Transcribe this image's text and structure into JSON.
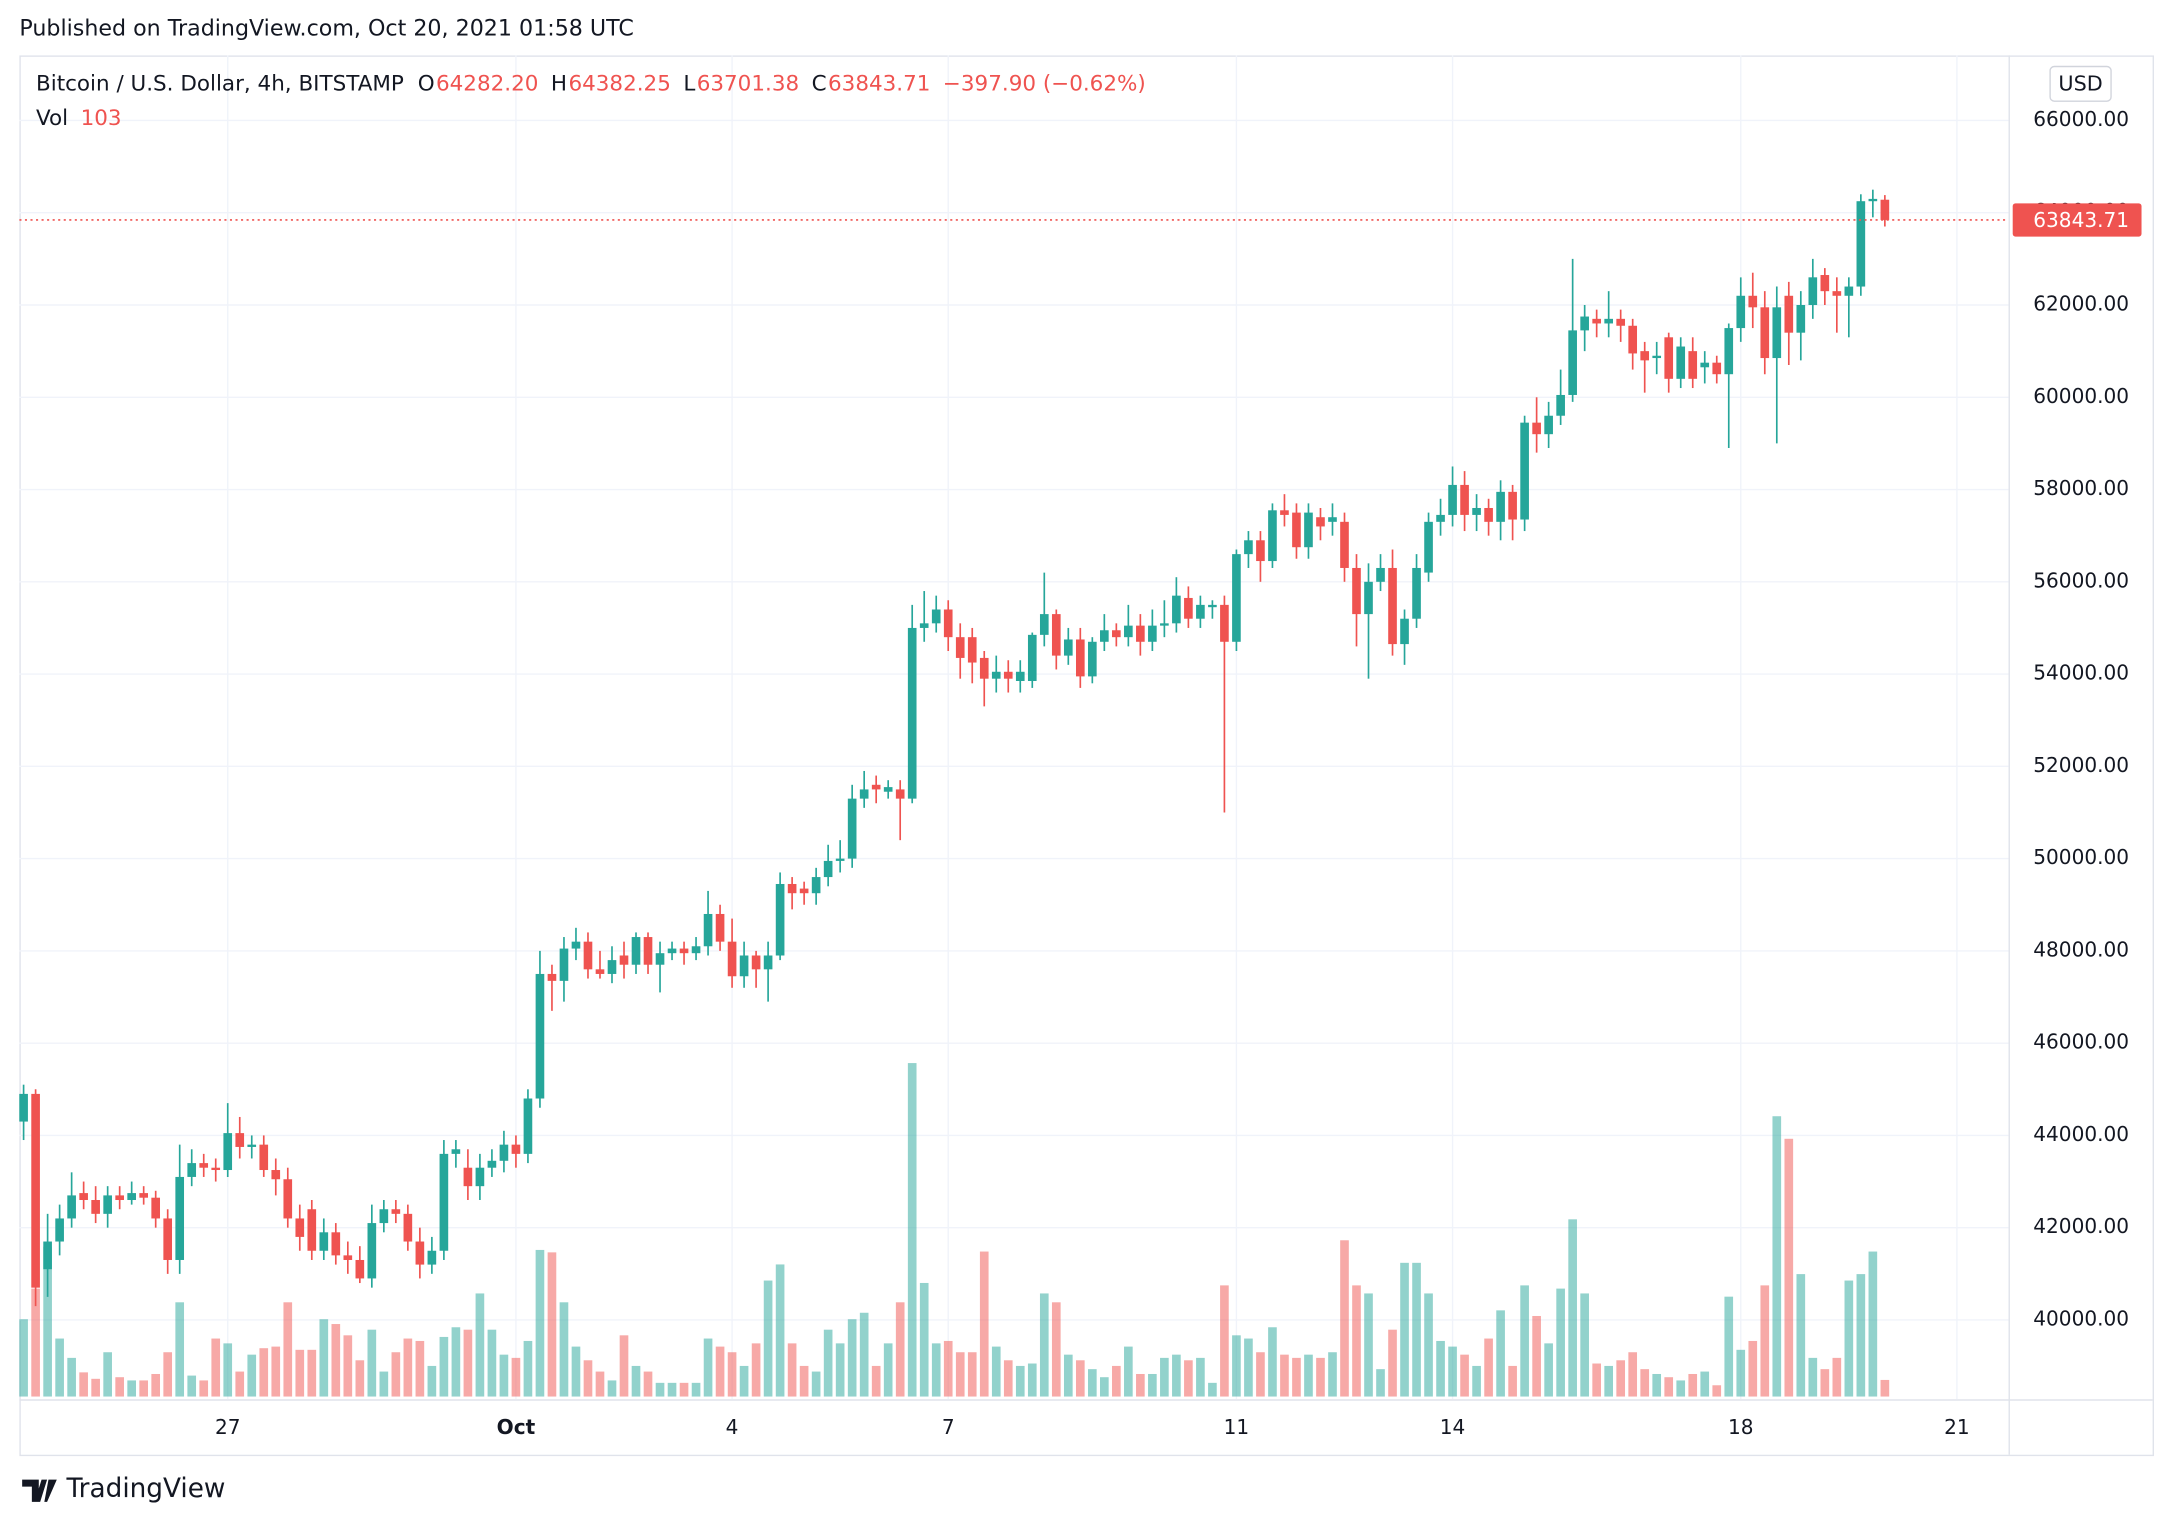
{
  "published": "Published on TradingView.com, Oct 20, 2021 01:58 UTC",
  "footer": {
    "brand": "TradingView"
  },
  "chart_data": {
    "type": "candlestick",
    "symbol": "Bitcoin / U.S. Dollar, 4h, BITSTAMP",
    "header_items": [
      {
        "prefix": "O",
        "text": "64282.20"
      },
      {
        "prefix": "H",
        "text": "64382.25"
      },
      {
        "prefix": "L",
        "text": "63701.38"
      },
      {
        "prefix": "C",
        "text": "63843.71"
      }
    ],
    "change": "−397.90 (−0.62%)",
    "volume_title": "Vol",
    "currency": "USD",
    "up_color": "#26a69a",
    "down_color": "#ef5350",
    "volume_up_color": "#26a69a",
    "volume_down_color": "#ef5350",
    "grid": true,
    "xlim": [
      -0.35,
      165.3
    ],
    "xticks": [
      {
        "value": 17,
        "label": "27"
      },
      {
        "value": 41,
        "label": "Oct"
      },
      {
        "value": 59,
        "label": "4"
      },
      {
        "value": 77,
        "label": "7"
      },
      {
        "value": 101,
        "label": "11"
      },
      {
        "value": 119,
        "label": "14"
      },
      {
        "value": 143,
        "label": "18"
      },
      {
        "value": 161,
        "label": "21"
      }
    ],
    "ylim": [
      38340,
      67410
    ],
    "yticks": [
      {
        "value": 40000,
        "label": "40000.00"
      },
      {
        "value": 42000,
        "label": "42000.00"
      },
      {
        "value": 44000,
        "label": "44000.00"
      },
      {
        "value": 46000,
        "label": "46000.00"
      },
      {
        "value": 48000,
        "label": "48000.00"
      },
      {
        "value": 50000,
        "label": "50000.00"
      },
      {
        "value": 52000,
        "label": "52000.00"
      },
      {
        "value": 54000,
        "label": "54000.00"
      },
      {
        "value": 56000,
        "label": "56000.00"
      },
      {
        "value": 58000,
        "label": "58000.00"
      },
      {
        "value": 60000,
        "label": "60000.00"
      },
      {
        "value": 62000,
        "label": "62000.00"
      },
      {
        "value": 64000,
        "label": "64000.00"
      },
      {
        "value": 66000,
        "label": "66000.00"
      }
    ],
    "volume_lim": [
      0,
      8325
    ],
    "open": [
      44300,
      44900,
      41100,
      41700,
      42200,
      42750,
      42600,
      42300,
      42700,
      42600,
      42750,
      42650,
      42200,
      41300,
      43100,
      43400,
      43300,
      43250,
      44050,
      43750,
      43800,
      43250,
      43050,
      42200,
      42400,
      41500,
      41900,
      41400,
      41300,
      40900,
      42100,
      42400,
      42300,
      41700,
      41200,
      41500,
      43600,
      43300,
      42900,
      43300,
      43450,
      43800,
      43600,
      44800,
      47500,
      47350,
      48050,
      48200,
      47600,
      47500,
      47900,
      47700,
      48300,
      47700,
      47950,
      48050,
      47950,
      48100,
      48800,
      48200,
      47450,
      47900,
      47600,
      47900,
      49450,
      49350,
      49250,
      49600,
      49950,
      50000,
      51300,
      51600,
      51450,
      51500,
      51300,
      55000,
      55100,
      55400,
      54800,
      54800,
      54350,
      53900,
      54050,
      53850,
      53850,
      54850,
      55300,
      54400,
      54750,
      53950,
      54700,
      54950,
      54800,
      55050,
      54700,
      55050,
      55100,
      55650,
      55200,
      55450,
      55500,
      54700,
      56600,
      56900,
      56450,
      57550,
      57500,
      56750,
      57400,
      57300,
      57300,
      56300,
      55300,
      56000,
      56300,
      54650,
      55200,
      56200,
      57300,
      57450,
      58100,
      57450,
      57600,
      57300,
      57950,
      57350,
      59450,
      59200,
      59600,
      60050,
      61450,
      61700,
      61600,
      61700,
      61550,
      61000,
      60850,
      61300,
      60400,
      61000,
      60650,
      60750,
      60500,
      61500,
      62200,
      61950,
      60850,
      62200,
      61400,
      62000,
      62650,
      62300,
      62200,
      62400,
      64250,
      64282.2
    ],
    "high": [
      45100,
      45000,
      42300,
      42500,
      43200,
      43000,
      42900,
      42900,
      42900,
      43000,
      42900,
      42800,
      42400,
      43800,
      43700,
      43600,
      43500,
      44700,
      44400,
      44000,
      44000,
      43500,
      43300,
      42500,
      42600,
      42200,
      42100,
      41700,
      41600,
      42500,
      42600,
      42600,
      42500,
      42000,
      41800,
      43900,
      43900,
      43700,
      43600,
      43700,
      44100,
      44000,
      45000,
      48000,
      47700,
      48300,
      48500,
      48400,
      48000,
      48100,
      48200,
      48400,
      48400,
      48200,
      48200,
      48200,
      48300,
      49300,
      49000,
      48700,
      48200,
      48000,
      48200,
      49700,
      49600,
      49500,
      49800,
      50300,
      50400,
      51600,
      51900,
      51800,
      51700,
      51700,
      55500,
      55800,
      55700,
      55600,
      55100,
      55000,
      54500,
      54400,
      54300,
      54300,
      54900,
      56200,
      55400,
      55000,
      55000,
      54800,
      55300,
      55100,
      55500,
      55300,
      55400,
      55600,
      56100,
      55900,
      55700,
      55600,
      55700,
      56700,
      57100,
      57100,
      57700,
      57900,
      57700,
      57700,
      57600,
      57700,
      57500,
      56600,
      56400,
      56600,
      56700,
      55400,
      56600,
      57500,
      57800,
      58500,
      58400,
      57900,
      57800,
      58200,
      58100,
      59600,
      60000,
      59900,
      60600,
      63000,
      62000,
      61900,
      62300,
      61900,
      61700,
      61200,
      61200,
      61400,
      61300,
      61300,
      61000,
      60900,
      61600,
      62600,
      62700,
      62300,
      62400,
      62500,
      62300,
      63000,
      62800,
      62600,
      62600,
      64400,
      64500,
      64382.25
    ],
    "low": [
      43900,
      40300,
      40500,
      41400,
      42000,
      42400,
      42100,
      42000,
      42400,
      42500,
      42500,
      42000,
      41000,
      41000,
      42900,
      43100,
      43000,
      43100,
      43500,
      43500,
      43100,
      42700,
      42000,
      41500,
      41300,
      41300,
      41200,
      41000,
      40800,
      40700,
      41900,
      42100,
      41500,
      40900,
      41000,
      41300,
      43300,
      42600,
      42600,
      43100,
      43200,
      43300,
      43400,
      44600,
      46700,
      46900,
      47800,
      47400,
      47400,
      47300,
      47400,
      47500,
      47500,
      47100,
      47800,
      47700,
      47800,
      47900,
      48000,
      47200,
      47200,
      47200,
      46900,
      47800,
      48900,
      49000,
      49000,
      49400,
      49700,
      49800,
      51100,
      51200,
      51300,
      50400,
      51200,
      54700,
      54900,
      54500,
      53900,
      53800,
      53300,
      53600,
      53600,
      53600,
      53700,
      54600,
      54100,
      54200,
      53700,
      53800,
      54500,
      54600,
      54600,
      54400,
      54500,
      54800,
      54900,
      55000,
      55000,
      55200,
      51000,
      54500,
      56300,
      56000,
      56300,
      57200,
      56500,
      56500,
      56900,
      57000,
      56000,
      54600,
      53900,
      55800,
      54400,
      54200,
      55000,
      56000,
      57000,
      57200,
      57100,
      57100,
      57000,
      56900,
      56900,
      57100,
      58800,
      58900,
      59400,
      59900,
      61000,
      61300,
      61300,
      61200,
      60600,
      60100,
      60500,
      60100,
      60200,
      60200,
      60300,
      60300,
      58900,
      61200,
      61500,
      60500,
      59000,
      60700,
      60800,
      61700,
      62000,
      61400,
      61300,
      62200,
      63900,
      63701.38
    ],
    "close": [
      44900,
      40700,
      41700,
      42200,
      42700,
      42600,
      42300,
      42700,
      42600,
      42750,
      42650,
      42200,
      41300,
      43100,
      43400,
      43300,
      43250,
      44050,
      43750,
      43800,
      43250,
      43050,
      42200,
      41800,
      41500,
      41900,
      41400,
      41300,
      40900,
      42100,
      42400,
      42300,
      41700,
      41200,
      41500,
      43600,
      43700,
      42900,
      43300,
      43450,
      43800,
      43600,
      44800,
      47500,
      47350,
      48050,
      48200,
      47600,
      47500,
      47800,
      47700,
      48300,
      47700,
      47950,
      48050,
      47950,
      48100,
      48800,
      48200,
      47450,
      47900,
      47600,
      47900,
      49450,
      49250,
      49250,
      49600,
      49950,
      50000,
      51300,
      51500,
      51500,
      51550,
      51300,
      55000,
      55100,
      55400,
      54800,
      54350,
      54250,
      53900,
      54050,
      53900,
      54050,
      54850,
      55300,
      54400,
      54750,
      53950,
      54700,
      54950,
      54800,
      55050,
      54700,
      55050,
      55100,
      55700,
      55200,
      55500,
      55500,
      54700,
      56600,
      56900,
      56450,
      57550,
      57450,
      56750,
      57500,
      57200,
      57400,
      56300,
      55300,
      56000,
      56300,
      54650,
      55200,
      56300,
      57300,
      57450,
      58100,
      57450,
      57600,
      57300,
      57950,
      57350,
      59450,
      59200,
      59600,
      60050,
      61450,
      61750,
      61600,
      61700,
      61550,
      60950,
      60800,
      60900,
      60400,
      61100,
      60400,
      60750,
      60500,
      61500,
      62200,
      61950,
      60850,
      61950,
      61400,
      62000,
      62600,
      62300,
      62200,
      62400,
      64250,
      64300,
      63843.71
    ],
    "volume": [
      480,
      670,
      930,
      360,
      240,
      150,
      110,
      275,
      120,
      100,
      100,
      140,
      275,
      585,
      130,
      100,
      360,
      330,
      155,
      260,
      300,
      310,
      585,
      290,
      290,
      480,
      450,
      380,
      225,
      415,
      155,
      275,
      360,
      345,
      190,
      370,
      430,
      415,
      640,
      415,
      260,
      240,
      345,
      910,
      895,
      585,
      310,
      225,
      155,
      100,
      380,
      190,
      155,
      85,
      85,
      85,
      85,
      360,
      310,
      275,
      190,
      330,
      720,
      820,
      330,
      190,
      155,
      415,
      330,
      480,
      520,
      190,
      330,
      585,
      2070,
      705,
      330,
      345,
      275,
      275,
      900,
      310,
      225,
      190,
      205,
      640,
      585,
      260,
      225,
      170,
      120,
      190,
      310,
      140,
      140,
      240,
      260,
      225,
      240,
      85,
      690,
      380,
      360,
      275,
      430,
      260,
      240,
      260,
      240,
      275,
      970,
      690,
      640,
      170,
      415,
      830,
      830,
      640,
      345,
      310,
      260,
      190,
      360,
      535,
      190,
      690,
      500,
      330,
      670,
      1100,
      640,
      205,
      190,
      225,
      275,
      170,
      140,
      120,
      100,
      140,
      155,
      70,
      620,
      290,
      345,
      690,
      1740,
      1600,
      760,
      240,
      170,
      240,
      720,
      760,
      900,
      103
    ]
  }
}
